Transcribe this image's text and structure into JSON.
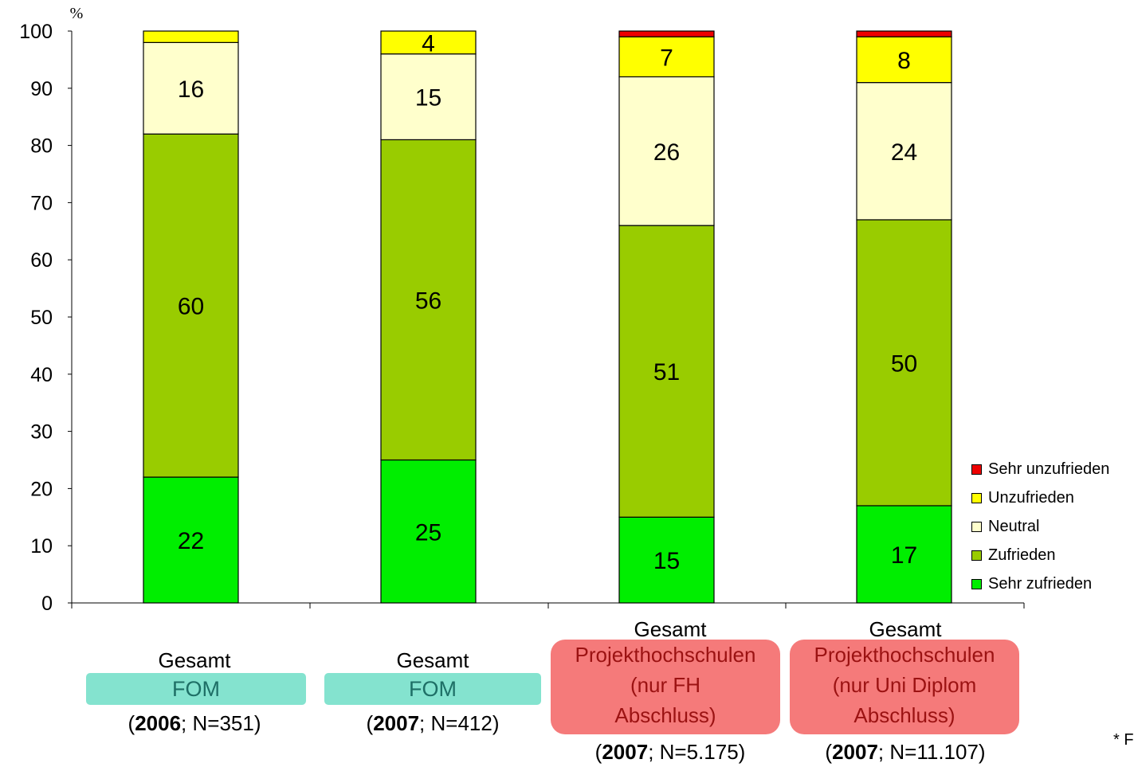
{
  "chart_data": {
    "type": "bar",
    "stacked": true,
    "ylabel": "%",
    "ylim": [
      0,
      100
    ],
    "yticks": [
      "0",
      "10",
      "20",
      "30",
      "40",
      "50",
      "60",
      "70",
      "80",
      "90",
      "100"
    ],
    "categories": [
      {
        "top": "Gesamt",
        "badge": "FOM",
        "badge_style": "teal",
        "year": "2006",
        "n": "; N=351)"
      },
      {
        "top": "Gesamt",
        "badge": "FOM",
        "badge_style": "teal",
        "year": "2007",
        "n": "; N=412)"
      },
      {
        "top": "Gesamt",
        "badge": [
          "Projekthochschulen",
          "(nur FH",
          "Abschluss)"
        ],
        "badge_style": "red",
        "year": "2007",
        "n": "; N=5.175)"
      },
      {
        "top": "Gesamt",
        "badge": [
          "Projekthochschulen",
          "(nur Uni Diplom",
          "Abschluss)"
        ],
        "badge_style": "red",
        "year": "2007",
        "n": "; N=11.107)"
      }
    ],
    "series": [
      {
        "name": "Sehr zufrieden",
        "color": "#00ee00",
        "values": [
          22,
          25,
          15,
          17
        ],
        "labels": [
          "22",
          "25",
          "15",
          "17"
        ]
      },
      {
        "name": "Zufrieden",
        "color": "#99cc00",
        "values": [
          60,
          56,
          51,
          50
        ],
        "labels": [
          "60",
          "56",
          "51",
          "50"
        ]
      },
      {
        "name": "Neutral",
        "color": "#ffffcc",
        "values": [
          16,
          15,
          26,
          24
        ],
        "labels": [
          "16",
          "15",
          "26",
          "24"
        ]
      },
      {
        "name": "Unzufrieden",
        "color": "#ffff00",
        "values": [
          2,
          4,
          7,
          8
        ],
        "labels": [
          "",
          "4",
          "7",
          "8"
        ]
      },
      {
        "name": "Sehr unzufrieden",
        "color": "#ee0000",
        "values": [
          0,
          0,
          1,
          1
        ],
        "labels": [
          "",
          "",
          "",
          ""
        ]
      }
    ],
    "legend_position": "right",
    "grid": false
  },
  "footnote": "* F"
}
